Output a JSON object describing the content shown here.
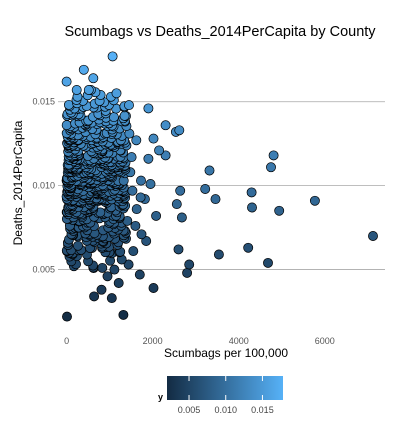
{
  "chart_data": {
    "type": "scatter",
    "title": "Scumbags vs  Deaths_2014PerCapita by County",
    "xlabel": "Scumbags per 100,000",
    "ylabel": "Deaths_2014PerCapita",
    "xlim": [
      -200,
      7400
    ],
    "ylim": [
      0.0014,
      0.0182
    ],
    "x_ticks": [
      0,
      2000,
      4000,
      6000
    ],
    "x_tick_labels": [
      "0",
      "2000",
      "4000",
      "6000"
    ],
    "y_ticks": [
      0.005,
      0.01,
      0.015
    ],
    "y_tick_labels": [
      "0.005",
      "0.010",
      "0.015"
    ],
    "grid": "horizontal major lines",
    "legend": {
      "title": "y",
      "position": "bottom",
      "ticks": [
        0.005,
        0.01,
        0.015
      ],
      "tick_labels": [
        "0.005",
        "0.010",
        "0.015"
      ],
      "range": [
        0.002,
        0.0178
      ],
      "color_low": "#132b43",
      "color_high": "#56b1f7"
    },
    "points": [
      {
        "x": 1070,
        "y": 0.0177
      },
      {
        "x": 400,
        "y": 0.0169
      },
      {
        "x": 0,
        "y": 0.0162
      },
      {
        "x": 620,
        "y": 0.0164
      },
      {
        "x": 1160,
        "y": 0.0155
      },
      {
        "x": 1450,
        "y": 0.0148
      },
      {
        "x": 1900,
        "y": 0.0146
      },
      {
        "x": 790,
        "y": 0.0154
      },
      {
        "x": 230,
        "y": 0.0151
      },
      {
        "x": 2300,
        "y": 0.0136
      },
      {
        "x": 2620,
        "y": 0.0133
      },
      {
        "x": 2540,
        "y": 0.0132
      },
      {
        "x": 2020,
        "y": 0.0128
      },
      {
        "x": 2150,
        "y": 0.0121
      },
      {
        "x": 1900,
        "y": 0.0116
      },
      {
        "x": 2300,
        "y": 0.0118
      },
      {
        "x": 4810,
        "y": 0.0118
      },
      {
        "x": 4750,
        "y": 0.0111
      },
      {
        "x": 3320,
        "y": 0.0109
      },
      {
        "x": 3220,
        "y": 0.0098
      },
      {
        "x": 4300,
        "y": 0.0096
      },
      {
        "x": 2640,
        "y": 0.0097
      },
      {
        "x": 5770,
        "y": 0.0091
      },
      {
        "x": 3460,
        "y": 0.0092
      },
      {
        "x": 2560,
        "y": 0.0089
      },
      {
        "x": 4310,
        "y": 0.0087
      },
      {
        "x": 4940,
        "y": 0.0085
      },
      {
        "x": 2680,
        "y": 0.0081
      },
      {
        "x": 7120,
        "y": 0.007
      },
      {
        "x": 4220,
        "y": 0.0063
      },
      {
        "x": 3540,
        "y": 0.0059
      },
      {
        "x": 2600,
        "y": 0.0062
      },
      {
        "x": 4680,
        "y": 0.0054
      },
      {
        "x": 2850,
        "y": 0.0053
      },
      {
        "x": 2800,
        "y": 0.0048
      },
      {
        "x": 2020,
        "y": 0.0039
      },
      {
        "x": 1320,
        "y": 0.0023
      },
      {
        "x": 10,
        "y": 0.0022
      },
      {
        "x": 640,
        "y": 0.0034
      },
      {
        "x": 1050,
        "y": 0.0033
      },
      {
        "x": 810,
        "y": 0.0038
      },
      {
        "x": 1210,
        "y": 0.0042
      },
      {
        "x": 1700,
        "y": 0.0047
      },
      {
        "x": 1600,
        "y": 0.0076
      },
      {
        "x": 1850,
        "y": 0.0067
      },
      {
        "x": 2080,
        "y": 0.0082
      },
      {
        "x": 1740,
        "y": 0.0071
      },
      {
        "x": 1630,
        "y": 0.0086
      },
      {
        "x": 1730,
        "y": 0.0103
      },
      {
        "x": 1530,
        "y": 0.0097
      },
      {
        "x": 1820,
        "y": 0.0092
      },
      {
        "x": 1950,
        "y": 0.0101
      },
      {
        "x": 1480,
        "y": 0.0108
      },
      {
        "x": 1350,
        "y": 0.0112
      },
      {
        "x": 1390,
        "y": 0.0124
      },
      {
        "x": 1460,
        "y": 0.0131
      },
      {
        "x": 1510,
        "y": 0.0117
      },
      {
        "x": 1620,
        "y": 0.0127
      },
      {
        "x": 1720,
        "y": 0.0093
      },
      {
        "x": 1410,
        "y": 0.0079
      },
      {
        "x": 1550,
        "y": 0.0061
      },
      {
        "x": 1440,
        "y": 0.0053
      },
      {
        "x": 1110,
        "y": 0.005
      },
      {
        "x": 1280,
        "y": 0.0056
      },
      {
        "x": 950,
        "y": 0.0046
      },
      {
        "x": 830,
        "y": 0.0051
      },
      {
        "x": 60,
        "y": 0.006
      },
      {
        "x": 110,
        "y": 0.0055
      },
      {
        "x": 170,
        "y": 0.0052
      },
      {
        "x": 30,
        "y": 0.0066
      },
      {
        "x": 240,
        "y": 0.0058
      },
      {
        "x": 500,
        "y": 0.0055
      }
    ],
    "cloud": {
      "x_min": 0,
      "x_max": 1400,
      "y_min": 0.0052,
      "y_max": 0.0157,
      "count": 650
    }
  }
}
